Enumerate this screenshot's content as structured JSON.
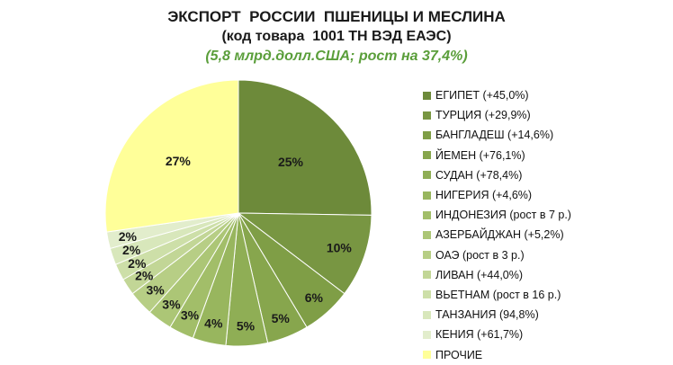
{
  "header": {
    "title": "ЭКСПОРТ  РОССИИ  ПШЕНИЦЫ И МЕСЛИНА",
    "subtitle": "(код товара  1001 ТН ВЭД ЕАЭС)",
    "note": "(5,8 млрд.долл.США;  рост на 37,4%)"
  },
  "colors": {
    "note_text": "#5a9e3a",
    "slice_border": "#ffffff"
  },
  "chart_data": {
    "type": "pie",
    "title": "ЭКСПОРТ  РОССИИ  ПШЕНИЦЫ И МЕСЛИНА",
    "subtitle": "(код товара  1001 ТН ВЭД ЕАЭС)",
    "start": "top, clockwise",
    "legend_position": "right",
    "slices": [
      {
        "label": "ЕГИПЕТ (+45,0%)",
        "value": 25,
        "display": "25%",
        "color": "#6d8a3a"
      },
      {
        "label": "ТУРЦИЯ (+29,9%)",
        "value": 10,
        "display": "10%",
        "color": "#789642"
      },
      {
        "label": "БАНГЛАДЕШ (+14,6%)",
        "value": 6,
        "display": "6%",
        "color": "#7f9e46"
      },
      {
        "label": "ЙЕМЕН (+76,1%)",
        "value": 5,
        "display": "5%",
        "color": "#87a64d"
      },
      {
        "label": "СУДАН (+78,4%)",
        "value": 5,
        "display": "5%",
        "color": "#8fae55"
      },
      {
        "label": "НИГЕРИЯ (+4,6%)",
        "value": 4,
        "display": "4%",
        "color": "#98b65e"
      },
      {
        "label": "ИНДОНЕЗИЯ (рост в 7 р.)",
        "value": 3,
        "display": "3%",
        "color": "#a2be69"
      },
      {
        "label": "АЗЕРБАЙДЖАН (+5,2%)",
        "value": 3,
        "display": "3%",
        "color": "#acc676"
      },
      {
        "label": "ОАЭ (рост в 3 р.)",
        "value": 3,
        "display": "3%",
        "color": "#b7ce85"
      },
      {
        "label": "ЛИВАН (+44,0%)",
        "value": 2,
        "display": "2%",
        "color": "#c2d696"
      },
      {
        "label": "ВЬЕТНАМ (рост в 16 р.)",
        "value": 2,
        "display": "2%",
        "color": "#cddfa8"
      },
      {
        "label": "ТАНЗАНИЯ (94,8%)",
        "value": 2,
        "display": "2%",
        "color": "#d8e7bb"
      },
      {
        "label": "КЕНИЯ (+61,7%)",
        "value": 2,
        "display": "2%",
        "color": "#e2edcc"
      },
      {
        "label": "ПРОЧИЕ",
        "value": 27,
        "display": "27%",
        "color": "#ffff99"
      }
    ]
  }
}
